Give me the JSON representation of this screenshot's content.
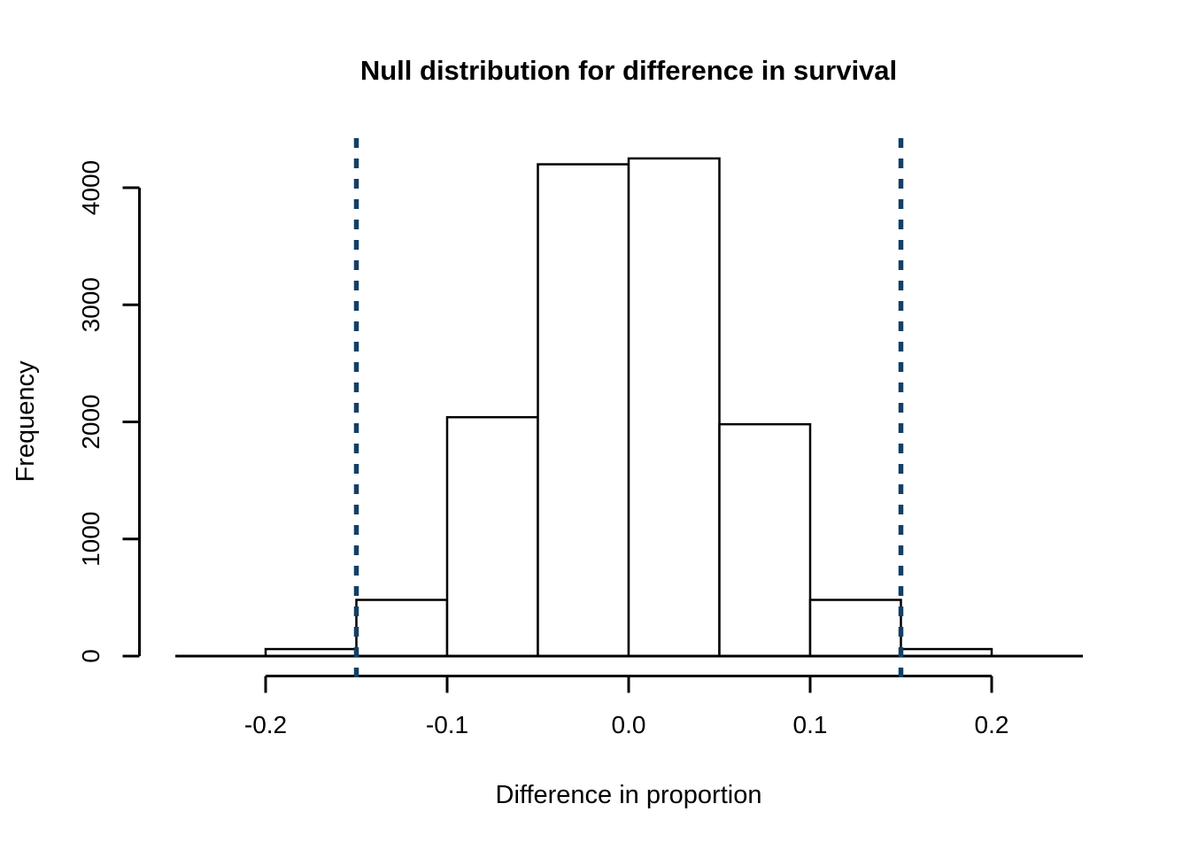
{
  "page": {
    "background": "#ffffff"
  },
  "chart_data": {
    "type": "bar",
    "subtype": "histogram",
    "title": "Null distribution for difference in survival",
    "xlabel": "Difference in proportion",
    "ylabel": "Frequency",
    "bin_breaks": [
      -0.2,
      -0.15,
      -0.1,
      -0.05,
      0.0,
      0.05,
      0.1,
      0.15,
      0.2
    ],
    "counts": [
      60,
      480,
      2040,
      4200,
      4250,
      1980,
      480,
      60
    ],
    "x_ticks": [
      {
        "value": -0.2,
        "label": "-0.2"
      },
      {
        "value": -0.1,
        "label": "-0.1"
      },
      {
        "value": 0.0,
        "label": "0.0"
      },
      {
        "value": 0.1,
        "label": "0.1"
      },
      {
        "value": 0.2,
        "label": "0.2"
      }
    ],
    "y_ticks": [
      {
        "value": 0,
        "label": "0"
      },
      {
        "value": 1000,
        "label": "1000"
      },
      {
        "value": 2000,
        "label": "2000"
      },
      {
        "value": 3000,
        "label": "3000"
      },
      {
        "value": 4000,
        "label": "4000"
      }
    ],
    "xlim": [
      -0.25,
      0.25
    ],
    "ylim": [
      0,
      4250
    ],
    "grid": false,
    "legend": null,
    "vlines": {
      "values": [
        -0.15,
        0.15
      ],
      "style": "dotted",
      "color": "#123f66"
    },
    "colors": {
      "bar_fill": "#ffffff",
      "bar_stroke": "#000000",
      "axis": "#000000",
      "text": "#000000"
    }
  }
}
